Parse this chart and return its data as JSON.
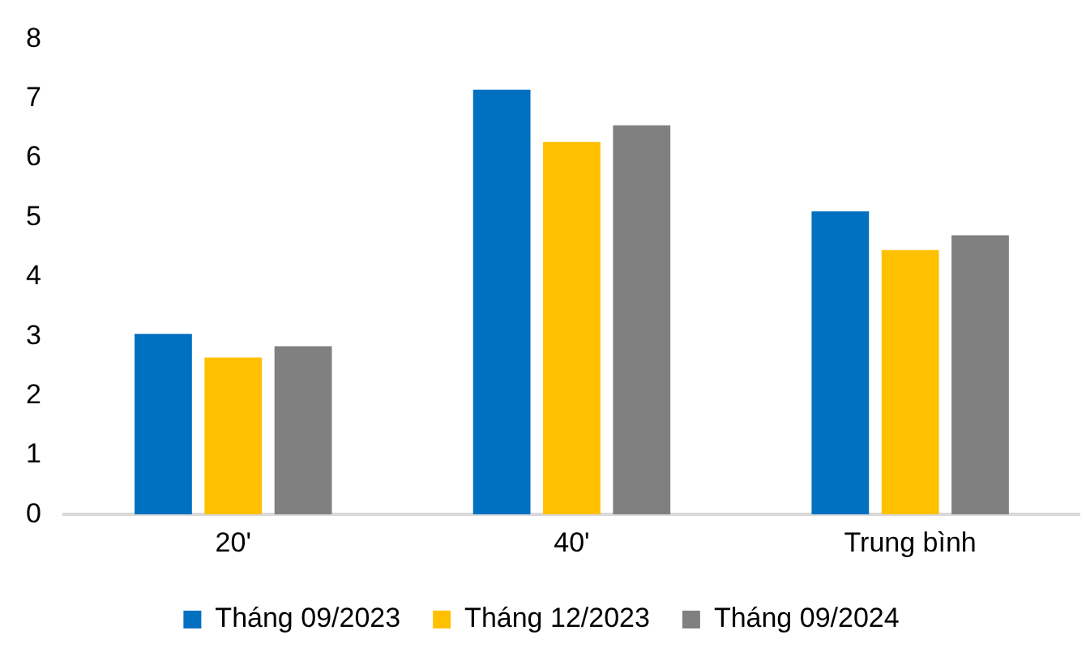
{
  "chart_data": {
    "type": "bar",
    "categories": [
      "20'",
      "40'",
      "Trung bình"
    ],
    "series": [
      {
        "name": "Tháng 09/2023",
        "color": "#0070c0",
        "values": [
          3.04,
          7.15,
          5.1
        ]
      },
      {
        "name": "Tháng 12/2023",
        "color": "#ffc000",
        "values": [
          2.64,
          6.27,
          4.45
        ]
      },
      {
        "name": "Tháng 09/2024",
        "color": "#808080",
        "values": [
          2.83,
          6.55,
          4.7
        ]
      }
    ],
    "ylim": [
      0,
      8
    ],
    "yticks": [
      0,
      1,
      2,
      3,
      4,
      5,
      6,
      7,
      8
    ],
    "grid": false,
    "legend": "bottom"
  }
}
